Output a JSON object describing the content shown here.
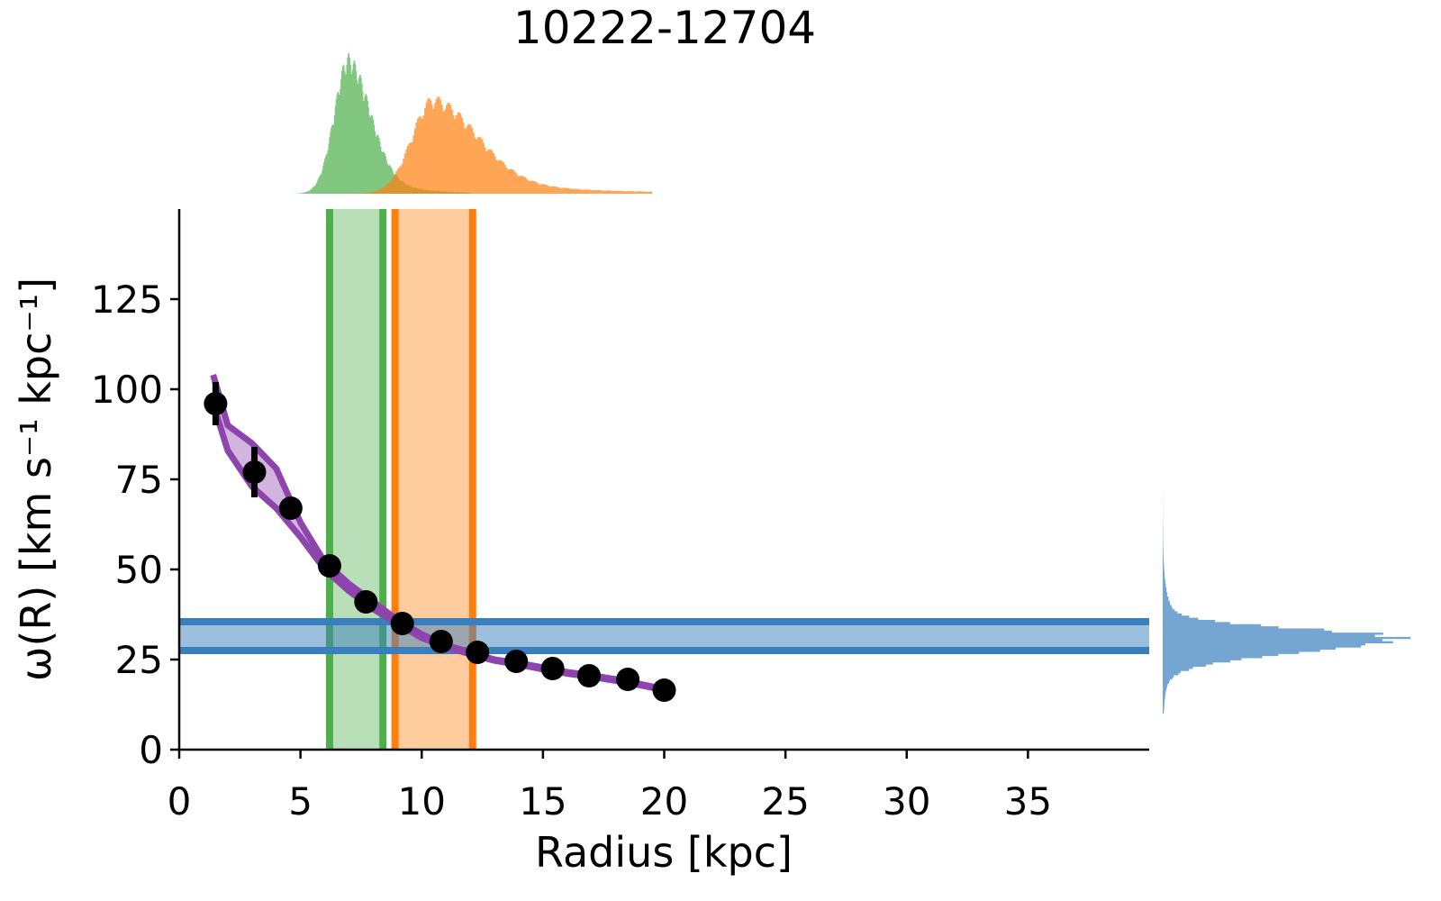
{
  "chart_data": {
    "type": "scatter",
    "title": "10222-12704",
    "xlabel": "Radius [kpc]",
    "ylabel": "ω(R) [km s⁻¹ kpc⁻¹]",
    "xlim": [
      0,
      40
    ],
    "ylim": [
      0,
      150
    ],
    "x_ticks": [
      0,
      5,
      10,
      15,
      20,
      25,
      30,
      35
    ],
    "y_ticks": [
      0,
      25,
      50,
      75,
      100,
      125
    ],
    "grid": false,
    "points": {
      "x": [
        1.5,
        3.1,
        4.6,
        6.2,
        7.7,
        9.2,
        10.8,
        12.3,
        13.9,
        15.4,
        16.9,
        18.5,
        20.0
      ],
      "y": [
        96,
        77,
        67,
        51,
        41,
        35,
        30,
        27,
        24.5,
        22.5,
        20.5,
        19.5,
        16.5
      ],
      "err": [
        6,
        7,
        3,
        2,
        1.5,
        1.5,
        1.2,
        1.2,
        1,
        1,
        1,
        1,
        1
      ]
    },
    "model_band": {
      "x": [
        1.4,
        2.0,
        3.0,
        4.0,
        5.0,
        6.0,
        7.0,
        8.0,
        9.0,
        10.0,
        11.0,
        12.0,
        13.0,
        14.0,
        15.0,
        16.0,
        17.0,
        18.0,
        19.0,
        20.0
      ],
      "upper": [
        104,
        90,
        85,
        78,
        63,
        52,
        46,
        41,
        36,
        32,
        29,
        27,
        25,
        24,
        22.8,
        21.5,
        20.6,
        19.5,
        18.2,
        16.8
      ],
      "lower": [
        96,
        83,
        73,
        67,
        59,
        50,
        44,
        39,
        35,
        31,
        28.5,
        26.5,
        24.7,
        23.6,
        22.3,
        21.1,
        20.2,
        19.1,
        17.9,
        16.5
      ],
      "color": "#8e44ad"
    },
    "vertical_bands": [
      {
        "x0": 6.2,
        "x1": 8.4,
        "color": "#4daf4a"
      },
      {
        "x0": 8.9,
        "x1": 12.1,
        "color": "#ff7f0e"
      }
    ],
    "horizontal_band": {
      "y0": 27.5,
      "y1": 35.5,
      "color": "#3a7fbd"
    },
    "top_histograms": [
      {
        "peak": 7.0,
        "sigma_left": 0.6,
        "sigma_right": 0.9,
        "tail": 1.6,
        "xmin": 4.6,
        "xmax": 12.0,
        "height": 1.0,
        "color": "#4daf4a"
      },
      {
        "peak": 10.5,
        "sigma_left": 0.9,
        "sigma_right": 1.8,
        "tail": 4.0,
        "xmin": 6.5,
        "xmax": 19.5,
        "height": 0.7,
        "color": "#ff7f0e"
      }
    ],
    "right_histogram": {
      "peak": 31.0,
      "sigma_low": 4.0,
      "sigma_high": 2.5,
      "ymin": 10,
      "ymax": 75,
      "color": "#3a7fbd"
    }
  }
}
